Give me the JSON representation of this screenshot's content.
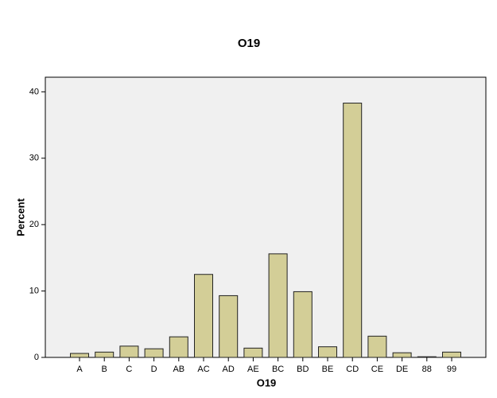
{
  "chart_data": {
    "type": "bar",
    "title": "O19",
    "x_label": "O19",
    "y_label": "Percent",
    "categories": [
      "A",
      "B",
      "C",
      "D",
      "AB",
      "AC",
      "AD",
      "AE",
      "BC",
      "BD",
      "BE",
      "CD",
      "CE",
      "DE",
      "88",
      "99"
    ],
    "values": [
      0.6,
      0.8,
      1.7,
      1.3,
      3.1,
      12.5,
      9.3,
      1.4,
      15.6,
      9.9,
      1.6,
      38.3,
      3.2,
      0.7,
      0.1,
      0.8
    ],
    "color": "#d3ce97",
    "ylim": [
      0,
      42.2
    ],
    "yticks": [
      0,
      10,
      20,
      30,
      40
    ],
    "grid": false
  }
}
